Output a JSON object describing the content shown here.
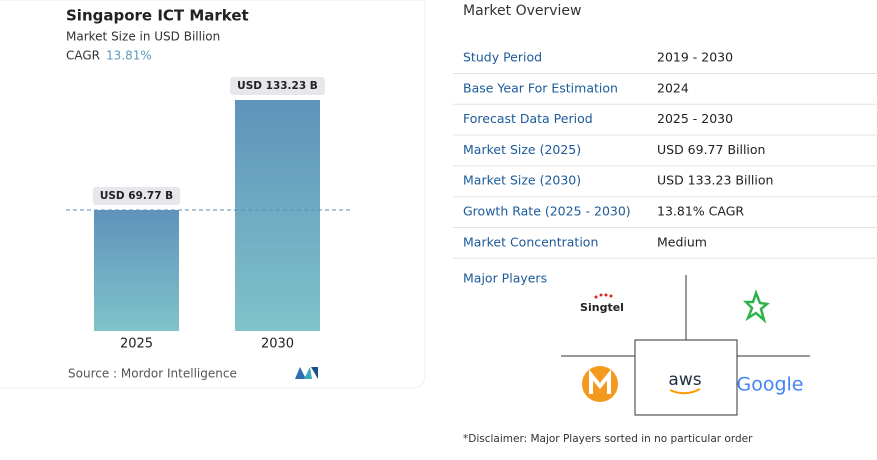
{
  "chart_data": {
    "type": "bar",
    "title": "Singapore ICT Market",
    "subtitle": "Market Size in USD Billion",
    "cagr_label": "CAGR",
    "cagr_value": "13.81%",
    "categories": [
      "2025",
      "2030"
    ],
    "values": [
      69.77,
      133.23
    ],
    "value_labels": [
      "USD 69.77 B",
      "USD 133.23 B"
    ],
    "color": "#6fa7c4",
    "source": "Source :  Mordor Intelligence"
  },
  "overview": {
    "title": "Market Overview",
    "rows": [
      [
        "Study Period",
        "2019 - 2030"
      ],
      [
        "Base Year For Estimation",
        "2024"
      ],
      [
        "Forecast Data Period",
        "2025 - 2030"
      ],
      [
        "Market Size (2025)",
        "USD 69.77 Billion"
      ],
      [
        "Market Size (2030)",
        "USD 133.23 Billion"
      ],
      [
        "Growth Rate (2025 - 2030)",
        "13.81% CAGR"
      ],
      [
        "Market Concentration",
        "Medium"
      ]
    ],
    "players_title": "Major Players",
    "players": [
      "Singtel",
      "aws",
      "Google"
    ],
    "disclaimer": "*Disclaimer: Major Players sorted in no particular order"
  }
}
